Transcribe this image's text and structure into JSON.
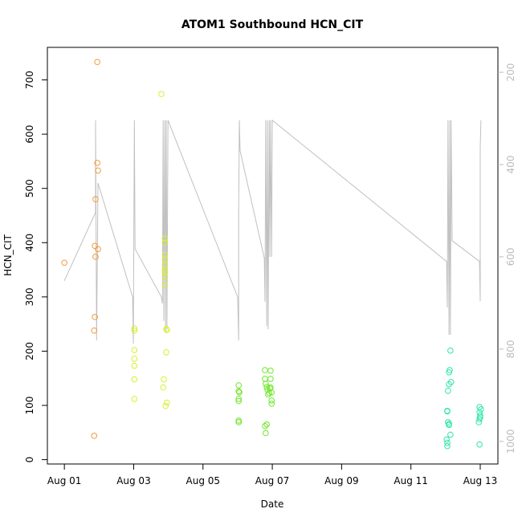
{
  "chart_data": {
    "type": "scatter",
    "title": "ATOM1 Southbound HCN_CIT",
    "x_label": "Date",
    "y_label": "HCN_CIT",
    "xlim": [
      0.51,
      13.51
    ],
    "ylim": [
      -8,
      760
    ],
    "y2lim": [
      1049,
      146
    ],
    "xticks": [
      {
        "value": 1,
        "label": "Aug 01"
      },
      {
        "value": 3,
        "label": "Aug 03"
      },
      {
        "value": 5,
        "label": "Aug 05"
      },
      {
        "value": 7,
        "label": "Aug 07"
      },
      {
        "value": 9,
        "label": "Aug 09"
      },
      {
        "value": 11,
        "label": "Aug 11"
      },
      {
        "value": 13,
        "label": "Aug 13"
      }
    ],
    "yticks": [
      0,
      100,
      200,
      300,
      400,
      500,
      600,
      700
    ],
    "y2ticks": [
      200,
      400,
      600,
      800,
      1000
    ],
    "y2_color": "#bbbbbb",
    "series": [
      {
        "type": "line",
        "axis": "y2",
        "color": "#c0c0c0",
        "x": [
          1.0,
          1.9,
          1.9,
          1.93,
          1.97,
          2.97,
          2.99,
          3.02,
          3.04,
          3.8,
          3.83,
          3.85,
          3.87,
          3.9,
          3.92,
          3.94,
          3.96,
          3.99,
          6.0,
          6.03,
          6.03,
          6.05,
          6.07,
          6.77,
          6.79,
          6.81,
          6.84,
          6.86,
          6.88,
          6.91,
          6.93,
          6.95,
          6.98,
          7.0,
          12.03,
          12.05,
          12.07,
          12.1,
          12.12,
          12.14,
          12.16,
          12.19,
          12.98,
          13.0,
          13.0,
          13.02
        ],
        "values": [
          652,
          504,
          304,
          781,
          440,
          687,
          788,
          304,
          583,
          687,
          701,
          304,
          739,
          304,
          765,
          304,
          757,
          304,
          687,
          781,
          492,
          304,
          370,
          603,
          697,
          304,
          750,
          304,
          757,
          304,
          600,
          304,
          600,
          304,
          610,
          710,
          304,
          769,
          304,
          769,
          304,
          565,
          610,
          696,
          365,
          304
        ]
      },
      {
        "color": "#f39a3c",
        "x": [
          1.0,
          1.86,
          1.86,
          1.88,
          1.88,
          1.9,
          1.9,
          1.95,
          1.95,
          1.97,
          1.97
        ],
        "values": [
          363,
          44,
          238,
          263,
          394,
          374,
          480,
          733,
          547,
          533,
          388
        ]
      },
      {
        "color": "#d9f02a",
        "x": [
          3.02,
          3.02,
          3.02,
          3.02,
          3.02,
          3.02,
          3.02,
          3.8,
          3.9,
          3.9,
          3.9,
          3.9,
          3.9,
          3.9,
          3.9,
          3.9,
          3.9,
          3.87,
          3.85,
          3.94,
          3.94,
          3.96,
          3.96,
          3.92
        ],
        "values": [
          242,
          238,
          202,
          186,
          173,
          148,
          112,
          674,
          408,
          400,
          378,
          369,
          359,
          350,
          346,
          337,
          322,
          148,
          133,
          198,
          241,
          239,
          105,
          99
        ]
      },
      {
        "color": "#6fe62a",
        "x": [
          6.03,
          6.03,
          6.03,
          6.03,
          6.03,
          6.03,
          6.05,
          6.79,
          6.79,
          6.81,
          6.84,
          6.86,
          6.88,
          6.79,
          6.81,
          6.84,
          6.95,
          6.95,
          6.95,
          6.98,
          6.98,
          6.98,
          6.93,
          6.91
        ],
        "values": [
          137,
          126,
          112,
          108,
          72,
          69,
          124,
          165,
          149,
          140,
          134,
          129,
          120,
          62,
          49,
          65,
          164,
          149,
          133,
          124,
          109,
          103,
          131,
          123
        ]
      },
      {
        "color": "#2ee6a8",
        "x": [
          12.14,
          12.12,
          12.1,
          12.1,
          12.07,
          12.05,
          12.05,
          12.07,
          12.1,
          12.03,
          12.05,
          12.05,
          12.14,
          12.16,
          12.1,
          12.98,
          12.98,
          13.0,
          12.98,
          12.96,
          12.98,
          13.02,
          13.0
        ],
        "values": [
          201,
          165,
          161,
          139,
          127,
          90,
          89,
          69,
          66,
          37,
          31,
          25,
          46,
          143,
          64,
          97,
          87,
          81,
          75,
          69,
          28,
          93,
          78
        ]
      }
    ]
  }
}
